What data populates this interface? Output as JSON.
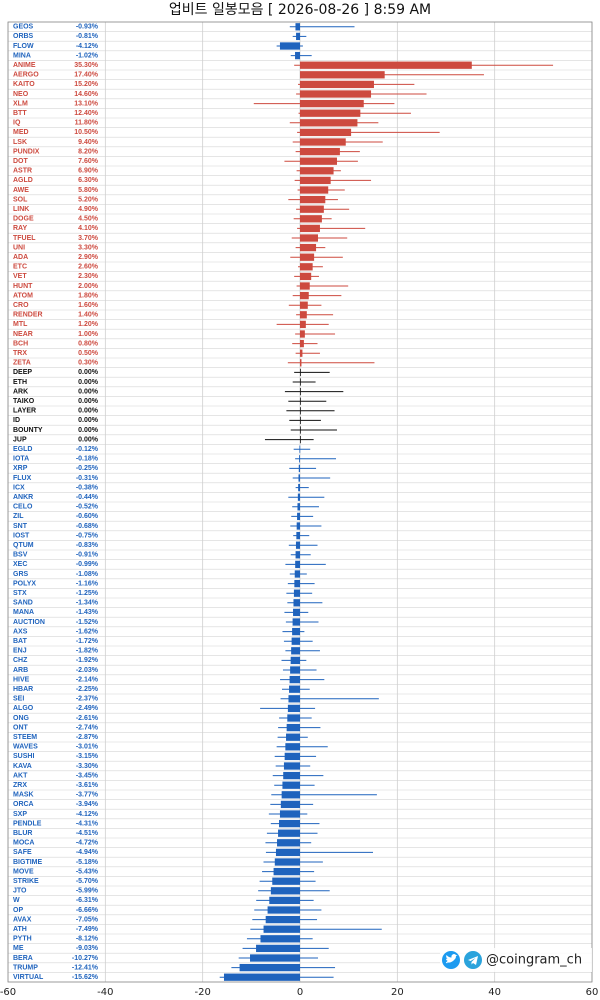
{
  "chart_data": {
    "type": "bar",
    "orientation": "horizontal",
    "title": "업비트 일봉모음 [ 2026-08-26 ]  8:59 AM",
    "watermark": "@coingram_ch",
    "categories": [
      "GEOS",
      "ORBS",
      "FLOW",
      "MINA",
      "ANIME",
      "AERGO",
      "KAITO",
      "NEO",
      "XLM",
      "BTT",
      "IQ",
      "MED",
      "LSK",
      "PUNDIX",
      "DOT",
      "ASTR",
      "AGLD",
      "AWE",
      "SOL",
      "LINK",
      "DOGE",
      "RAY",
      "TFUEL",
      "UNI",
      "ADA",
      "ETC",
      "VET",
      "HUNT",
      "ATOM",
      "CRO",
      "RENDER",
      "MTL",
      "NEAR",
      "BCH",
      "TRX",
      "ZETA",
      "DEEP",
      "ETH",
      "ARK",
      "TAIKO",
      "LAYER",
      "ID",
      "BOUNTY",
      "JUP",
      "EGLD",
      "IOTA",
      "XRP",
      "FLUX",
      "ICX",
      "ANKR",
      "CELO",
      "ZIL",
      "SNT",
      "IOST",
      "QTUM",
      "BSV",
      "XEC",
      "GRS",
      "POLYX",
      "STX",
      "SAND",
      "MANA",
      "AUCTION",
      "AXS",
      "BAT",
      "ENJ",
      "CHZ",
      "ARB",
      "HIVE",
      "HBAR",
      "SEI",
      "ALGO",
      "ONG",
      "ONT",
      "STEEM",
      "WAVES",
      "SUSHI",
      "KAVA",
      "AKT",
      "ZRX",
      "MASK",
      "ORCA",
      "SXP",
      "PENDLE",
      "BLUR",
      "MOCA",
      "SAFE",
      "BIGTIME",
      "MOVE",
      "STRIKE",
      "JTO",
      "W",
      "OP",
      "AVAX",
      "ATH",
      "PYTH",
      "ME",
      "BERA",
      "TRUMP",
      "VIRTUAL"
    ],
    "values": [
      -0.93,
      -0.81,
      -4.12,
      -1.02,
      35.3,
      17.4,
      15.2,
      14.6,
      13.1,
      12.4,
      11.8,
      10.5,
      9.4,
      8.2,
      7.6,
      6.9,
      6.3,
      5.8,
      5.2,
      4.9,
      4.5,
      4.1,
      3.7,
      3.3,
      2.9,
      2.6,
      2.3,
      2.0,
      1.8,
      1.6,
      1.4,
      1.2,
      1.0,
      0.8,
      0.5,
      0.3,
      0,
      0,
      0,
      0,
      0,
      0,
      0,
      0,
      -0.12,
      -0.18,
      -0.25,
      -0.31,
      -0.38,
      -0.44,
      -0.52,
      -0.6,
      -0.68,
      -0.75,
      -0.83,
      -0.91,
      -0.99,
      -1.08,
      -1.16,
      -1.25,
      -1.34,
      -1.43,
      -1.52,
      -1.62,
      -1.72,
      -1.82,
      -1.92,
      -2.03,
      -2.14,
      -2.25,
      -2.37,
      -2.49,
      -2.61,
      -2.74,
      -2.87,
      -3.01,
      -3.15,
      -3.3,
      -3.45,
      -3.61,
      -3.77,
      -3.94,
      -4.12,
      -4.31,
      -4.51,
      -4.72,
      -4.94,
      -5.18,
      -5.43,
      -5.7,
      -5.99,
      -6.31,
      -6.66,
      -7.05,
      -7.49,
      -8.12,
      -9.03,
      -10.27,
      -12.41,
      -15.62
    ],
    "value_labels": [
      "-0.93%",
      "-0.81%",
      "-4.12%",
      "-1.02%",
      "35.30%",
      "17.40%",
      "15.20%",
      "14.60%",
      "13.10%",
      "12.40%",
      "11.80%",
      "10.50%",
      "9.40%",
      "8.20%",
      "7.60%",
      "6.90%",
      "6.30%",
      "5.80%",
      "5.20%",
      "4.90%",
      "4.50%",
      "4.10%",
      "3.70%",
      "3.30%",
      "2.90%",
      "2.60%",
      "2.30%",
      "2.00%",
      "1.80%",
      "1.60%",
      "1.40%",
      "1.20%",
      "1.00%",
      "0.80%",
      "0.50%",
      "0.30%",
      "0.00%",
      "0.00%",
      "0.00%",
      "0.00%",
      "0.00%",
      "0.00%",
      "0.00%",
      "0.00%",
      "-0.12%",
      "-0.18%",
      "-0.25%",
      "-0.31%",
      "-0.38%",
      "-0.44%",
      "-0.52%",
      "-0.60%",
      "-0.68%",
      "-0.75%",
      "-0.83%",
      "-0.91%",
      "-0.99%",
      "-1.08%",
      "-1.16%",
      "-1.25%",
      "-1.34%",
      "-1.43%",
      "-1.52%",
      "-1.62%",
      "-1.72%",
      "-1.82%",
      "-1.92%",
      "-2.03%",
      "-2.14%",
      "-2.25%",
      "-2.37%",
      "-2.49%",
      "-2.61%",
      "-2.74%",
      "-2.87%",
      "-3.01%",
      "-3.15%",
      "-3.30%",
      "-3.45%",
      "-3.61%",
      "-3.77%",
      "-3.94%",
      "-4.12%",
      "-4.31%",
      "-4.51%",
      "-4.72%",
      "-4.94%",
      "-5.18%",
      "-5.43%",
      "-5.70%",
      "-5.99%",
      "-6.31%",
      "-6.66%",
      "-7.05%",
      "-7.49%",
      "-8.12%",
      "-9.03%",
      "-10.27%",
      "-12.41%",
      "-15.62%"
    ],
    "low": [
      -2.1,
      -1.5,
      -4.8,
      -1.9,
      -1.2,
      0,
      -0.4,
      -0.8,
      -9.5,
      -0.3,
      -2.1,
      -0.6,
      -1.5,
      -0.9,
      -3.2,
      -0.7,
      -1.1,
      -0.5,
      -2.4,
      -0.8,
      -1.3,
      -0.6,
      -1.7,
      -0.9,
      -2.0,
      -0.4,
      -1.2,
      -0.7,
      -1.5,
      -2.3,
      -0.8,
      -4.8,
      -1.0,
      -1.6,
      -0.9,
      -2.5,
      -1.2,
      -1.5,
      -3.1,
      -2.4,
      -2.8,
      -2.2,
      -1.9,
      -7.2,
      -1.3,
      -1.0,
      -2.2,
      -1.5,
      -0.9,
      -2.4,
      -1.6,
      -1.8,
      -2.0,
      -1.4,
      -2.3,
      -1.9,
      -3.0,
      -2.1,
      -2.5,
      -2.8,
      -2.6,
      -3.2,
      -2.9,
      -3.6,
      -3.3,
      -3.0,
      -3.8,
      -3.5,
      -4.1,
      -3.7,
      -4.0,
      -8.2,
      -4.3,
      -4.5,
      -4.6,
      -4.8,
      -5.2,
      -5.0,
      -5.6,
      -5.3,
      -5.9,
      -6.1,
      -6.4,
      -6.0,
      -6.8,
      -7.1,
      -7.0,
      -7.5,
      -7.8,
      -8.3,
      -8.6,
      -9.0,
      -9.4,
      -9.8,
      -10.2,
      -10.9,
      -11.8,
      -12.6,
      -14.1,
      -16.5
    ],
    "high": [
      11.2,
      1.3,
      0.6,
      2.4,
      52.0,
      37.8,
      23.5,
      26.0,
      19.4,
      22.8,
      16.1,
      28.7,
      17.0,
      12.3,
      11.9,
      8.4,
      14.6,
      9.2,
      7.8,
      10.1,
      6.5,
      13.4,
      9.7,
      5.2,
      8.8,
      4.7,
      3.9,
      9.9,
      8.5,
      4.4,
      6.8,
      5.9,
      7.2,
      3.6,
      4.1,
      15.3,
      6.1,
      3.2,
      8.9,
      5.4,
      7.1,
      4.3,
      7.6,
      2.8,
      2.1,
      7.4,
      3.3,
      6.2,
      1.8,
      5.0,
      3.9,
      2.7,
      4.4,
      1.9,
      3.6,
      2.2,
      5.3,
      1.4,
      3.0,
      2.5,
      4.6,
      1.7,
      3.8,
      0.9,
      2.6,
      4.1,
      1.3,
      3.4,
      5.0,
      2.0,
      16.2,
      3.1,
      2.4,
      4.2,
      1.6,
      5.7,
      3.3,
      2.1,
      4.8,
      3.0,
      15.8,
      2.7,
      1.5,
      4.0,
      3.6,
      2.3,
      15.0,
      4.7,
      2.9,
      3.2,
      6.1,
      2.8,
      4.4,
      3.5,
      16.8,
      2.6,
      5.9,
      3.7,
      7.2,
      6.9
    ],
    "up_color": "#cd4a3f",
    "down_color": "#1f63bd",
    "flat_color": "#111111",
    "xlim": [
      -60,
      60
    ],
    "xticks": [
      -60,
      -40,
      -20,
      0,
      20,
      40,
      60
    ],
    "grid": true
  }
}
